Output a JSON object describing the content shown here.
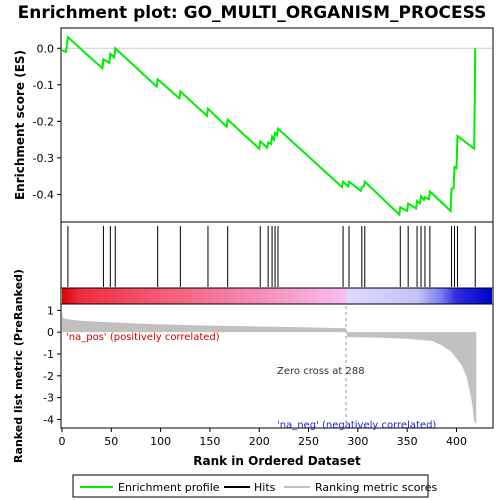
{
  "title": "Enrichment plot: GO_MULTI_ORGANISM_PROCESS",
  "colors": {
    "es_line": "#00ee00",
    "hits": "#000000",
    "metric_fill": "#c0c0c0",
    "pos_label": "#cc0000",
    "neg_label": "#2222cc",
    "zero_cross_line": "#999999"
  },
  "chart_data": [
    {
      "type": "line",
      "name": "es-panel",
      "ylabel": "Enrichment score (ES)",
      "ylim": [
        -0.47,
        0.05
      ],
      "yticks": [
        0.0,
        -0.1,
        -0.2,
        -0.3,
        -0.4
      ],
      "ytick_labels": [
        "0.0",
        "-0.1",
        "-0.2",
        "-0.3",
        "-0.4"
      ],
      "xlim": [
        0,
        436
      ],
      "series": [
        {
          "name": "Enrichment profile",
          "x": [
            0,
            4,
            6,
            41,
            42,
            48,
            49,
            53,
            54,
            96,
            97,
            119,
            120,
            147,
            148,
            167,
            168,
            200,
            201,
            208,
            209,
            212,
            213,
            215,
            216,
            218,
            219,
            284,
            285,
            290,
            291,
            303,
            304,
            306,
            307,
            342,
            343,
            350,
            351,
            359,
            360,
            363,
            364,
            367,
            368,
            372,
            373,
            394,
            395,
            397,
            398,
            400,
            401,
            418,
            419
          ],
          "y": [
            -0.005,
            -0.01,
            0.03,
            -0.055,
            -0.03,
            -0.04,
            -0.015,
            -0.025,
            0.0,
            -0.105,
            -0.085,
            -0.137,
            -0.118,
            -0.185,
            -0.165,
            -0.215,
            -0.195,
            -0.275,
            -0.255,
            -0.272,
            -0.258,
            -0.262,
            -0.242,
            -0.25,
            -0.232,
            -0.238,
            -0.22,
            -0.38,
            -0.365,
            -0.378,
            -0.365,
            -0.39,
            -0.38,
            -0.378,
            -0.365,
            -0.455,
            -0.435,
            -0.445,
            -0.425,
            -0.438,
            -0.418,
            -0.424,
            -0.405,
            -0.415,
            -0.408,
            -0.413,
            -0.392,
            -0.445,
            -0.385,
            -0.383,
            -0.325,
            -0.328,
            -0.24,
            -0.275,
            0.0
          ]
        }
      ]
    },
    {
      "type": "scatter",
      "name": "hits-panel",
      "series": [
        {
          "name": "Hits",
          "x": [
            6,
            42,
            49,
            54,
            97,
            120,
            148,
            168,
            201,
            209,
            213,
            216,
            219,
            285,
            291,
            304,
            307,
            343,
            351,
            360,
            364,
            368,
            373,
            395,
            398,
            401,
            419
          ]
        }
      ]
    },
    {
      "type": "heatmap",
      "name": "rank-colorbar",
      "stops": [
        {
          "x": 0,
          "color": "#dd0000"
        },
        {
          "x": 18,
          "color": "#ee2c3c"
        },
        {
          "x": 95,
          "color": "#f45870"
        },
        {
          "x": 200,
          "color": "#f88cb8"
        },
        {
          "x": 288,
          "color": "#f4c0f0"
        },
        {
          "x": 289,
          "color": "#ded8fc"
        },
        {
          "x": 360,
          "color": "#c4c4f8"
        },
        {
          "x": 385,
          "color": "#7a7af0"
        },
        {
          "x": 400,
          "color": "#2c2ce0"
        },
        {
          "x": 436,
          "color": "#0000cc"
        }
      ]
    },
    {
      "type": "area",
      "name": "metric-panel",
      "xlabel": "Rank in Ordered Dataset",
      "ylabel": "Ranked list metric (PreRanked)",
      "ylim": [
        -4.3,
        1.2
      ],
      "yticks": [
        1,
        0,
        -1,
        -2,
        -3,
        -4
      ],
      "ytick_labels": [
        "1",
        "0",
        "-1",
        "-2",
        "-3",
        "-4"
      ],
      "xlim": [
        0,
        436
      ],
      "xticks": [
        0,
        50,
        100,
        150,
        200,
        250,
        300,
        350,
        400
      ],
      "xtick_labels": [
        "0",
        "50",
        "100",
        "150",
        "200",
        "250",
        "300",
        "350",
        "400"
      ],
      "series": [
        {
          "name": "Ranking metric scores",
          "x": [
            0,
            1,
            5,
            20,
            50,
            100,
            150,
            200,
            250,
            288,
            289,
            320,
            350,
            375,
            385,
            395,
            400,
            405,
            410,
            413,
            416,
            418,
            420
          ],
          "y": [
            1.0,
            0.65,
            0.6,
            0.52,
            0.45,
            0.36,
            0.3,
            0.26,
            0.22,
            0.18,
            -0.22,
            -0.25,
            -0.3,
            -0.4,
            -0.6,
            -0.9,
            -1.2,
            -1.5,
            -2.0,
            -2.6,
            -3.3,
            -4.1,
            -4.2
          ]
        }
      ],
      "annotations": {
        "pos": "'na_pos' (positively correlated)",
        "neg": "'na_neg' (negatively correlated)",
        "zero_cross": "Zero cross at 288",
        "zero_cross_x": 288
      }
    }
  ],
  "legend": {
    "items": [
      {
        "label": "Enrichment profile",
        "color": "#00ee00"
      },
      {
        "label": "Hits",
        "color": "#000000"
      },
      {
        "label": "Ranking metric scores",
        "color": "#c0c0c0"
      }
    ]
  }
}
